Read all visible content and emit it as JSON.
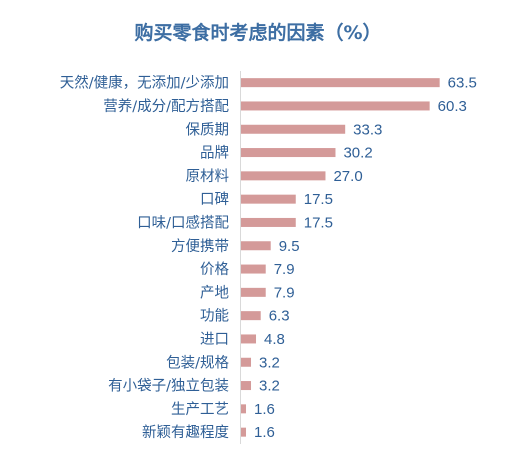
{
  "colors": {
    "bar": "#d49a99",
    "text": "#2f5f96",
    "title": "#3d6ea3",
    "axis": "#d9d9d9"
  },
  "chart_data": {
    "type": "bar",
    "orientation": "horizontal",
    "title": "购买零食时考虑的因素（%）",
    "xlabel": "",
    "ylabel": "",
    "xlim": [
      0,
      70
    ],
    "grid": false,
    "legend": "none",
    "categories": [
      "天然/健康，无添加/少添加",
      "营养/成分/配方搭配",
      "保质期",
      "品牌",
      "原材料",
      "口碑",
      "口味/口感搭配",
      "方便携带",
      "价格",
      "产地",
      "功能",
      "进口",
      "包装/规格",
      "有小袋子/独立包装",
      "生产工艺",
      "新颖有趣程度"
    ],
    "values": [
      63.5,
      60.3,
      33.3,
      30.2,
      27.0,
      17.5,
      17.5,
      9.5,
      7.9,
      7.9,
      6.3,
      4.8,
      3.2,
      3.2,
      1.6,
      1.6
    ],
    "value_labels": [
      "63.5",
      "60.3",
      "33.3",
      "30.2",
      "27.0",
      "17.5",
      "17.5",
      "9.5",
      "7.9",
      "7.9",
      "6.3",
      "4.8",
      "3.2",
      "3.2",
      "1.6",
      "1.6"
    ]
  }
}
